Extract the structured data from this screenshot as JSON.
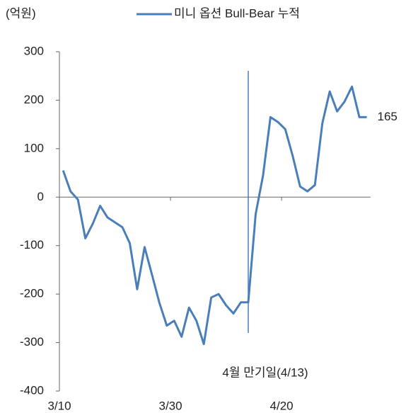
{
  "chart_data": {
    "type": "line",
    "y_unit_label": "(억원)",
    "annotation": "4월 만기일(4/13)",
    "categories": [
      "3/10",
      null,
      null,
      null,
      null,
      null,
      null,
      null,
      null,
      null,
      null,
      null,
      null,
      null,
      null,
      "3/30",
      null,
      null,
      null,
      null,
      null,
      null,
      null,
      null,
      null,
      null,
      null,
      null,
      null,
      null,
      "4/20",
      null,
      null,
      null,
      null,
      null,
      null,
      null,
      null,
      null,
      null,
      null
    ],
    "series": [
      {
        "name": "미니 옵션 Bull-Bear 누적",
        "color": "#4a7ebb",
        "values": [
          55,
          12,
          -5,
          -85,
          -55,
          -18,
          -42,
          -52,
          -62,
          -95,
          -190,
          -103,
          -160,
          -218,
          -265,
          -255,
          -288,
          -228,
          -255,
          -303,
          -207,
          -200,
          -223,
          -240,
          -217,
          -217,
          -35,
          45,
          165,
          155,
          140,
          85,
          22,
          12,
          25,
          152,
          218,
          177,
          197,
          228,
          165,
          165
        ],
        "value_labels": [
          null,
          null,
          null,
          null,
          null,
          null,
          null,
          null,
          null,
          null,
          null,
          null,
          null,
          null,
          null,
          null,
          null,
          null,
          null,
          null,
          null,
          null,
          null,
          null,
          null,
          null,
          null,
          null,
          null,
          null,
          null,
          null,
          null,
          null,
          null,
          null,
          null,
          null,
          null,
          null,
          null,
          "165"
        ]
      }
    ],
    "ylim": [
      -400,
      300
    ],
    "yticks": [
      -400,
      -300,
      -200,
      -100,
      0,
      100,
      200,
      300
    ],
    "grid": false
  }
}
